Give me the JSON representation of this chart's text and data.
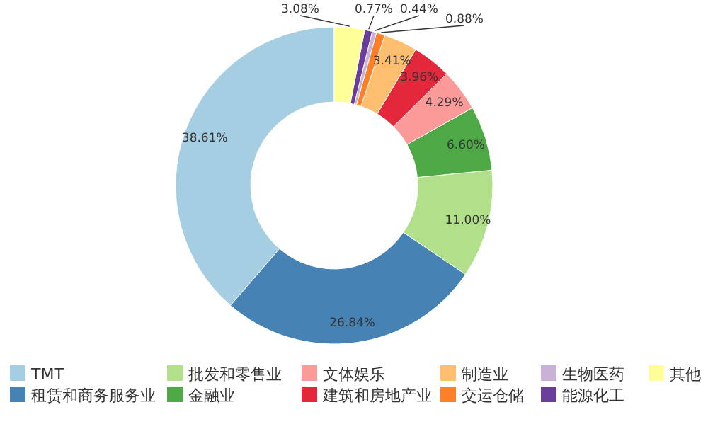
{
  "chart_data": {
    "type": "donut",
    "categories": [
      "TMT",
      "租赁和商务服务业",
      "批发和零售业",
      "金融业",
      "文体娱乐",
      "建筑和房地产业",
      "制造业",
      "交运仓储",
      "生物医药",
      "能源化工",
      "其他"
    ],
    "values": [
      38.61,
      26.84,
      11.0,
      6.6,
      4.29,
      3.96,
      3.41,
      0.88,
      0.44,
      0.77,
      3.08
    ],
    "colors": [
      "#a6cee3",
      "#4682b4",
      "#b2df8a",
      "#4ea845",
      "#fb9a99",
      "#e3283c",
      "#fdbf6f",
      "#ff7f27",
      "#cab2d6",
      "#6a3d9a",
      "#ffff99"
    ],
    "value_labels": [
      "38.61%",
      "26.84%",
      "11.00%",
      "6.60%",
      "4.29%",
      "3.96%",
      "3.41%",
      "0.88%",
      "0.44%",
      "0.77%",
      "3.08%"
    ],
    "legend": "bottom"
  }
}
